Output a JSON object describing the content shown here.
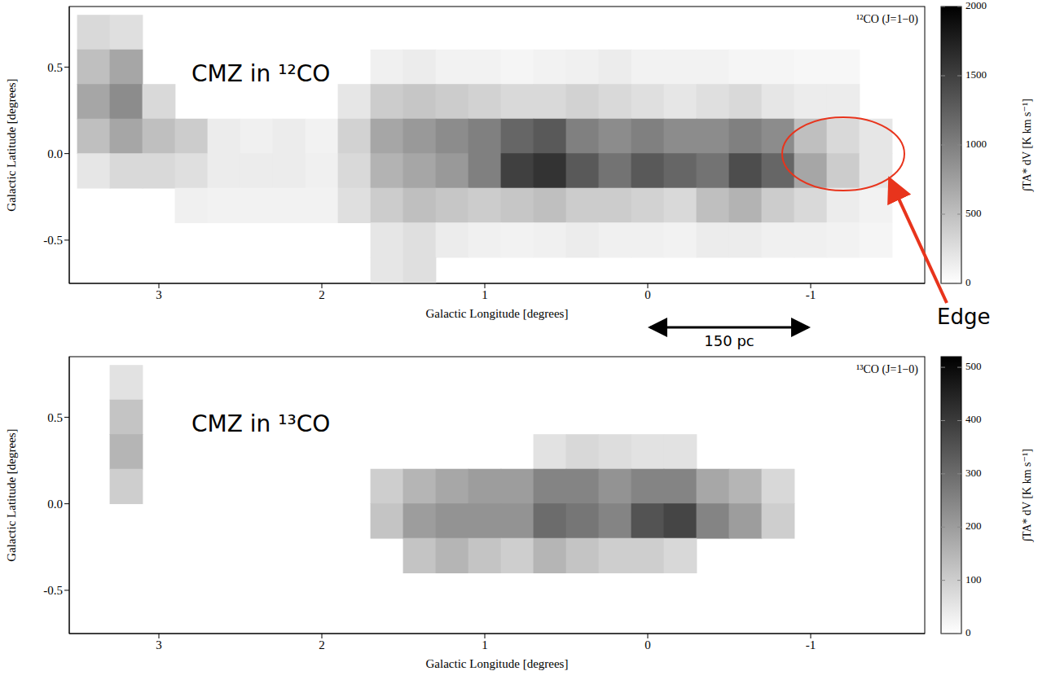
{
  "chart_data": [
    {
      "type": "heatmap",
      "title": "¹²CO (J=1−0)",
      "annotations": [
        "CMZ in ¹²CO",
        "Edge",
        "150 pc"
      ],
      "x_label": "Galactic Longitude [degrees]",
      "y_label": "Galactic Latitude [degrees]",
      "xlim": [
        3.55,
        -1.7
      ],
      "xticks": [
        3,
        2,
        1,
        0,
        -1
      ],
      "ylim": [
        -0.75,
        0.85
      ],
      "yticks": [
        0.5,
        {
          "value": 0,
          "label": "0.0"
        },
        -0.5
      ],
      "color": "#000000",
      "x": [
        3.4,
        3.2,
        3.0,
        2.8,
        2.6,
        2.4,
        2.2,
        2.0,
        1.8,
        1.6,
        1.4,
        1.2,
        1.0,
        0.8,
        0.6,
        0.4,
        0.2,
        0.0,
        -0.2,
        -0.4,
        -0.6,
        -0.8,
        -1.0,
        -1.2,
        -1.4,
        -1.6
      ],
      "y": [
        0.7,
        0.5,
        0.3,
        0.1,
        -0.1,
        -0.3,
        -0.5,
        -0.7
      ],
      "cells": [
        [
          300,
          250,
          null,
          null,
          null,
          null,
          null,
          null,
          null,
          null,
          null,
          null,
          null,
          null,
          null,
          null,
          null,
          null,
          null,
          null,
          null,
          null,
          null,
          null,
          null,
          null
        ],
        [
          500,
          700,
          null,
          null,
          null,
          null,
          null,
          null,
          null,
          120,
          150,
          100,
          100,
          80,
          100,
          120,
          150,
          100,
          100,
          100,
          80,
          80,
          60,
          60,
          null,
          null
        ],
        [
          700,
          900,
          300,
          null,
          null,
          null,
          null,
          null,
          200,
          400,
          450,
          400,
          350,
          300,
          300,
          350,
          300,
          250,
          200,
          250,
          300,
          200,
          150,
          150,
          null,
          null
        ],
        [
          500,
          700,
          500,
          400,
          150,
          120,
          150,
          100,
          350,
          700,
          800,
          900,
          1000,
          1200,
          1300,
          1000,
          900,
          1000,
          900,
          900,
          1000,
          900,
          500,
          300,
          200,
          null
        ],
        [
          200,
          300,
          300,
          250,
          150,
          150,
          150,
          120,
          300,
          600,
          700,
          800,
          1000,
          1500,
          1600,
          1300,
          1100,
          1300,
          1200,
          1100,
          1400,
          1200,
          700,
          400,
          200,
          null
        ],
        [
          null,
          null,
          null,
          120,
          100,
          100,
          100,
          100,
          250,
          400,
          500,
          450,
          400,
          450,
          500,
          400,
          400,
          350,
          300,
          500,
          600,
          400,
          300,
          150,
          100,
          null
        ],
        [
          null,
          null,
          null,
          null,
          null,
          null,
          null,
          null,
          null,
          200,
          250,
          150,
          120,
          100,
          120,
          150,
          120,
          120,
          100,
          150,
          150,
          120,
          120,
          100,
          80,
          null
        ],
        [
          null,
          null,
          null,
          null,
          null,
          null,
          null,
          null,
          null,
          200,
          250,
          null,
          null,
          null,
          null,
          null,
          null,
          null,
          null,
          null,
          null,
          null,
          null,
          null,
          null,
          null
        ]
      ],
      "colorbar": {
        "range": [
          0,
          2000
        ],
        "ticks": [
          0,
          500,
          1000,
          1500,
          2000
        ],
        "label": "∫TA* dV [K km s⁻¹]"
      }
    },
    {
      "type": "heatmap",
      "title": "¹³CO (J=1−0)",
      "annotations": [
        "CMZ in ¹³CO"
      ],
      "x_label": "Galactic Longitude [degrees]",
      "y_label": "Galactic Latitude [degrees]",
      "xlim": [
        3.55,
        -1.7
      ],
      "xticks": [
        3,
        2,
        1,
        0,
        -1
      ],
      "ylim": [
        -0.75,
        0.85
      ],
      "yticks": [
        0.5,
        {
          "value": 0,
          "label": "0.0"
        },
        -0.5
      ],
      "color": "#000000",
      "x": [
        3.4,
        3.2,
        3.0,
        2.8,
        2.6,
        2.4,
        2.2,
        2.0,
        1.8,
        1.6,
        1.4,
        1.2,
        1.0,
        0.8,
        0.6,
        0.4,
        0.2,
        0.0,
        -0.2,
        -0.4,
        -0.6,
        -0.8,
        -1.0,
        -1.2,
        -1.4,
        -1.6
      ],
      "y": [
        0.7,
        0.5,
        0.3,
        0.1,
        -0.1,
        -0.3,
        -0.5,
        -0.7
      ],
      "cells": [
        [
          null,
          60,
          null,
          null,
          null,
          null,
          null,
          null,
          null,
          null,
          null,
          null,
          null,
          null,
          null,
          null,
          null,
          null,
          null,
          null,
          null,
          null,
          null,
          null,
          null,
          null
        ],
        [
          null,
          120,
          null,
          null,
          null,
          null,
          null,
          null,
          null,
          null,
          null,
          null,
          null,
          null,
          null,
          null,
          null,
          null,
          null,
          null,
          null,
          null,
          null,
          null,
          null,
          null
        ],
        [
          null,
          150,
          null,
          null,
          null,
          null,
          null,
          null,
          null,
          null,
          null,
          null,
          null,
          null,
          60,
          80,
          70,
          60,
          60,
          null,
          null,
          null,
          null,
          null,
          null,
          null
        ],
        [
          null,
          100,
          null,
          null,
          null,
          null,
          null,
          null,
          null,
          100,
          150,
          180,
          200,
          200,
          250,
          250,
          220,
          250,
          250,
          180,
          150,
          80,
          null,
          null,
          null,
          null
        ],
        [
          null,
          null,
          null,
          null,
          null,
          null,
          null,
          null,
          null,
          120,
          200,
          220,
          220,
          220,
          300,
          280,
          250,
          350,
          380,
          250,
          200,
          100,
          null,
          null,
          null,
          null
        ],
        [
          null,
          null,
          null,
          null,
          null,
          null,
          null,
          null,
          null,
          null,
          120,
          150,
          120,
          100,
          150,
          120,
          100,
          100,
          80,
          null,
          null,
          null,
          null,
          null,
          null,
          null
        ],
        [
          null,
          null,
          null,
          null,
          null,
          null,
          null,
          null,
          null,
          null,
          null,
          null,
          null,
          null,
          null,
          null,
          null,
          null,
          null,
          null,
          null,
          null,
          null,
          null,
          null,
          null
        ],
        [
          null,
          null,
          null,
          null,
          null,
          null,
          null,
          null,
          null,
          null,
          null,
          null,
          null,
          null,
          null,
          null,
          null,
          null,
          null,
          null,
          null,
          null,
          null,
          null,
          null,
          null
        ]
      ],
      "colorbar": {
        "range": [
          0,
          520
        ],
        "ticks": [
          0,
          100,
          200,
          300,
          400,
          500
        ],
        "label": "∫TA* dV [K km s⁻¹]"
      }
    }
  ]
}
